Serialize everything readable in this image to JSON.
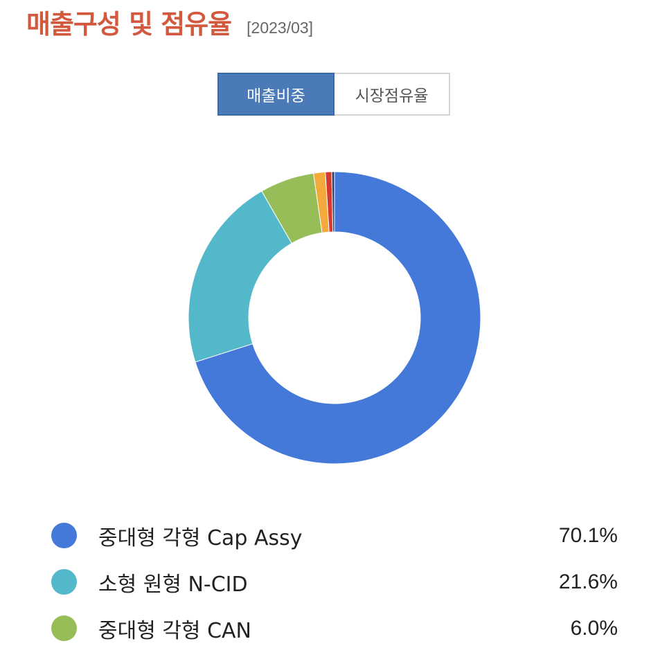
{
  "header": {
    "title": "매출구성 및 점유율",
    "date": "[2023/03]"
  },
  "tabs": [
    {
      "label": "매출비중",
      "active": true
    },
    {
      "label": "시장점유율",
      "active": false
    }
  ],
  "chart_data": {
    "type": "pie",
    "donut": true,
    "slices": [
      {
        "label": "중대형 각형 Cap Assy",
        "value": 70.1,
        "display": "70.1%",
        "color": "#4479d9"
      },
      {
        "label": "소형 원형 N-CID",
        "value": 21.6,
        "display": "21.6%",
        "color": "#53b8c9"
      },
      {
        "label": "중대형 각형 CAN",
        "value": 6.0,
        "display": "6.0%",
        "color": "#97bd58"
      },
      {
        "value": 1.3,
        "color": "#f3a93c"
      },
      {
        "value": 0.7,
        "color": "#d6392f"
      },
      {
        "value": 0.3,
        "color": "#2c3e6b"
      }
    ]
  }
}
